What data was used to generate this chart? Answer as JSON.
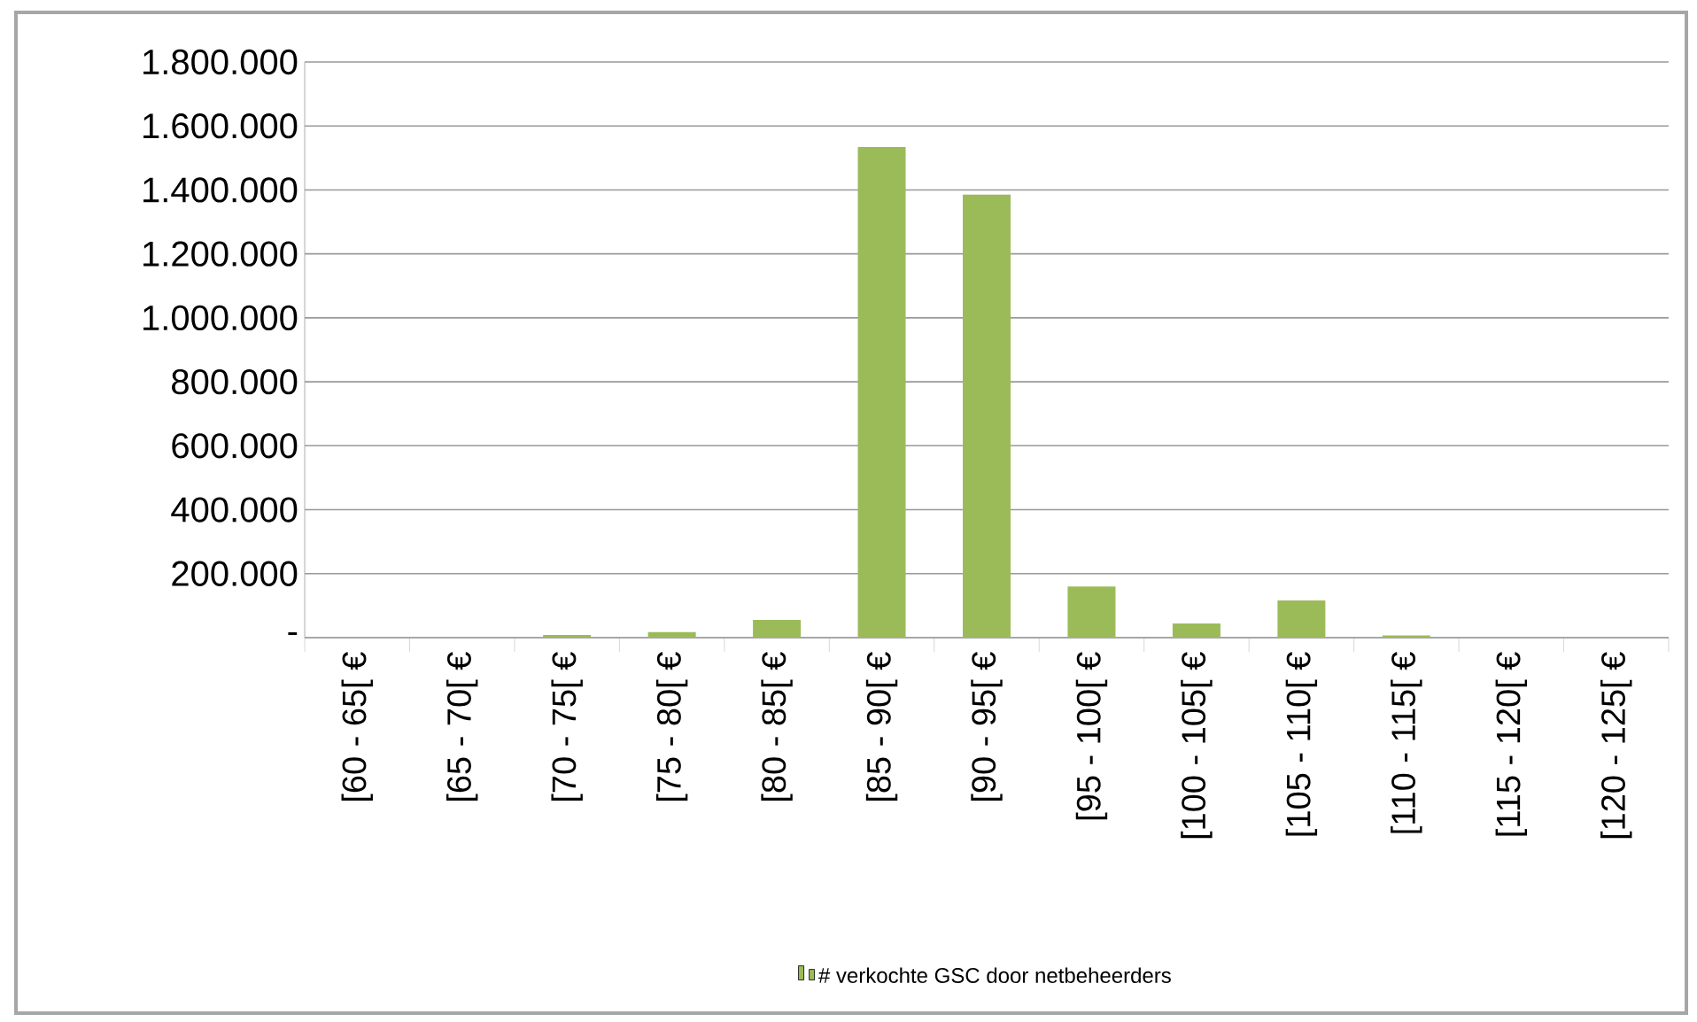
{
  "chart_data": {
    "type": "bar",
    "categories": [
      "[60 - 65[ €",
      "[65 - 70[ €",
      "[70 - 75[ €",
      "[75 - 80[ €",
      "[80 - 85[ €",
      "[85 - 90[ €",
      "[90 - 95[ €",
      "[95 - 100[ €",
      "[100 - 105[ €",
      "[105 - 110[ €",
      "[110 - 115[ €",
      "[115 - 120[ €",
      "[120 - 125[ €"
    ],
    "series": [
      {
        "name": "# verkochte GSC door netbeheerders",
        "color": "#9bbb59",
        "values": [
          0,
          0,
          8000,
          17000,
          55000,
          1534000,
          1385000,
          160000,
          44000,
          116000,
          7000,
          0,
          0
        ]
      }
    ],
    "ylim": [
      0,
      1800000
    ],
    "yticks": [
      {
        "value": 0,
        "label": "-"
      },
      {
        "value": 200000,
        "label": "200.000"
      },
      {
        "value": 400000,
        "label": "400.000"
      },
      {
        "value": 600000,
        "label": "600.000"
      },
      {
        "value": 800000,
        "label": "800.000"
      },
      {
        "value": 1000000,
        "label": "1.000.000"
      },
      {
        "value": 1200000,
        "label": "1.200.000"
      },
      {
        "value": 1400000,
        "label": "1.400.000"
      },
      {
        "value": 1600000,
        "label": "1.600.000"
      },
      {
        "value": 1800000,
        "label": "1.800.000"
      }
    ],
    "grid": "y",
    "legend": "bottom"
  }
}
